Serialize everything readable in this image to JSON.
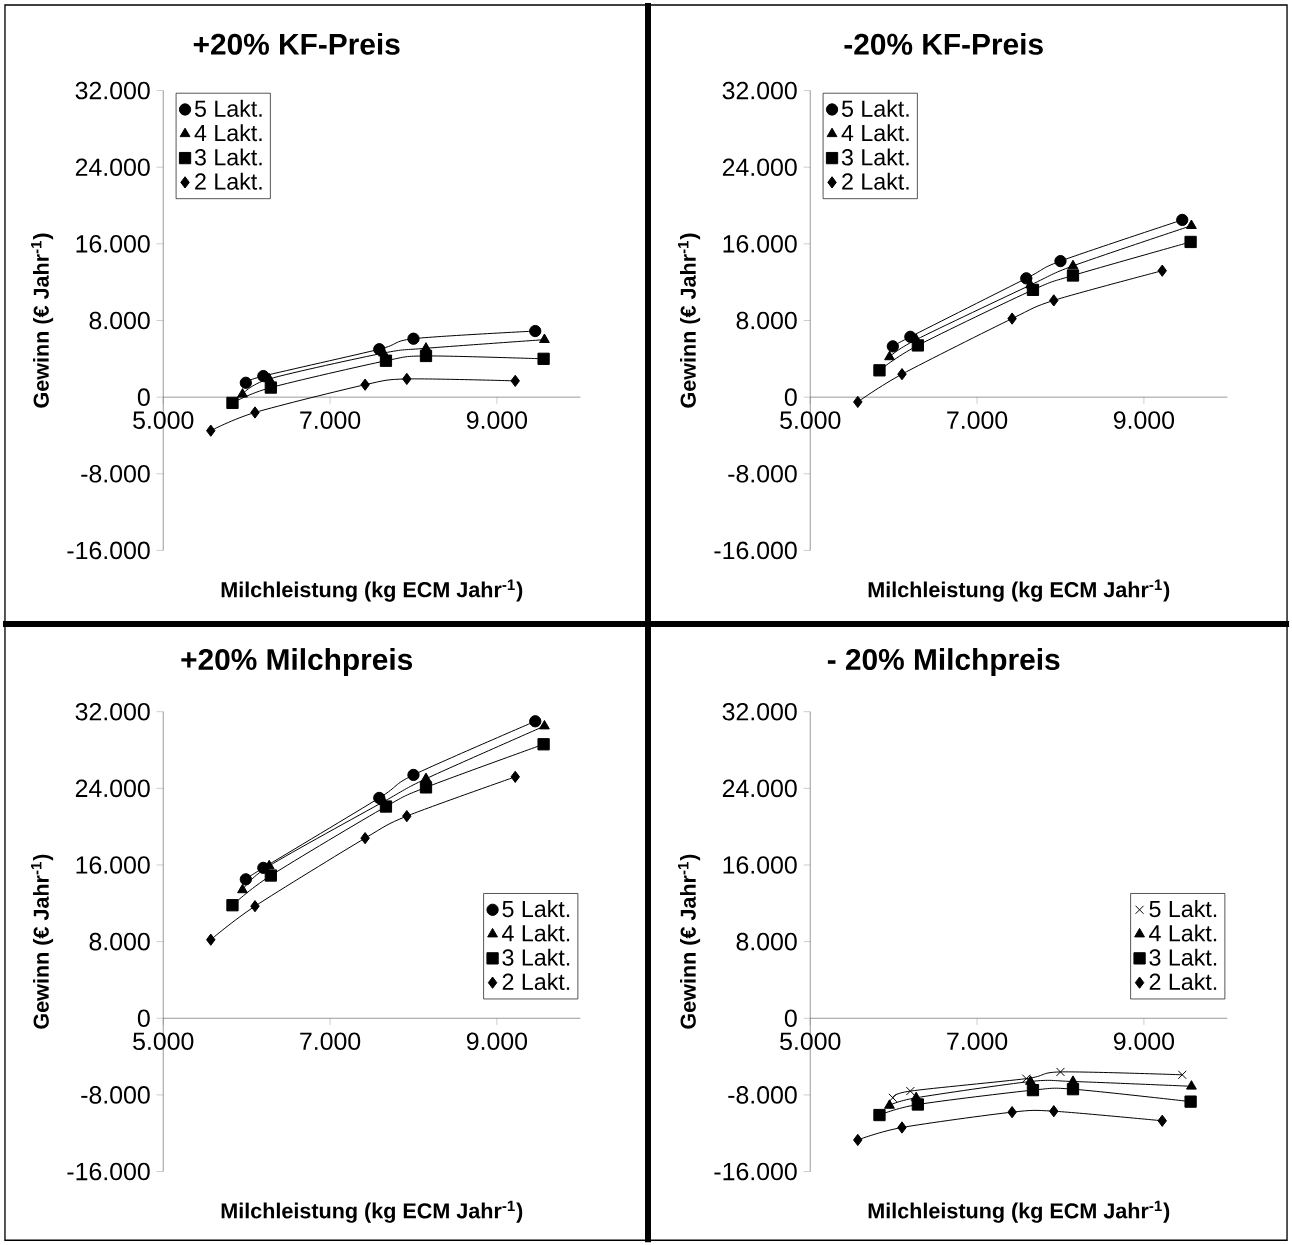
{
  "chart_data": [
    {
      "type": "line",
      "title": "+20%  KF-Preis",
      "xlabel": "Milchleistung (kg ECM Jahr$^{-1}$)",
      "ylabel": "Gewinn (€ Jahr$^{-1}$)",
      "xlim": [
        5000,
        10000
      ],
      "ylim": [
        -16000,
        32000
      ],
      "xticks": [
        {
          "value": 5000,
          "label": "5.000"
        },
        {
          "value": 7000,
          "label": "7.000"
        },
        {
          "value": 9000,
          "label": "9.000"
        }
      ],
      "yticks": [
        {
          "value": -16000,
          "label": "-16.000"
        },
        {
          "value": -8000,
          "label": "-8.000"
        },
        0,
        {
          "value": 8000,
          "label": "8.000"
        },
        {
          "value": 16000,
          "label": "16.000"
        },
        {
          "value": 24000,
          "label": "24.000"
        },
        {
          "value": 32000,
          "label": "32.000"
        }
      ],
      "legend": "top left",
      "line_style": "solid",
      "series": [
        {
          "name": "5 Lakt.",
          "color": "#000000",
          "marker": "circle",
          "x": [
            5990,
            6200,
            7590,
            8000,
            9460
          ],
          "values": [
            1500,
            2200,
            5000,
            6100,
            6900
          ]
        },
        {
          "name": "4 Lakt.",
          "color": "#000000",
          "marker": "triangle",
          "x": [
            5950,
            6270,
            7640,
            8150,
            9570
          ],
          "values": [
            300,
            1900,
            4600,
            5100,
            6000
          ]
        },
        {
          "name": "3 Lakt.",
          "color": "#000000",
          "marker": "square",
          "x": [
            5830,
            6290,
            7670,
            8150,
            9560
          ],
          "values": [
            -600,
            1000,
            3800,
            4300,
            4000
          ]
        },
        {
          "name": "2 Lakt.",
          "color": "#000000",
          "marker": "diamond",
          "x": [
            5570,
            6100,
            7420,
            7920,
            9220
          ],
          "values": [
            -3500,
            -1600,
            1300,
            1900,
            1700
          ]
        }
      ]
    },
    {
      "type": "line",
      "title": "-20%  KF-Preis",
      "xlabel": "Milchleistung (kg ECM Jahr$^{-1}$)",
      "ylabel": "Gewinn (€ Jahr$^{-1}$)",
      "xlim": [
        5000,
        10000
      ],
      "ylim": [
        -16000,
        32000
      ],
      "xticks": [
        {
          "value": 5000,
          "label": "5.000"
        },
        {
          "value": 7000,
          "label": "7.000"
        },
        {
          "value": 9000,
          "label": "9.000"
        }
      ],
      "yticks": [
        {
          "value": -16000,
          "label": "-16.000"
        },
        {
          "value": -8000,
          "label": "-8.000"
        },
        0,
        {
          "value": 8000,
          "label": "8.000"
        },
        {
          "value": 16000,
          "label": "16.000"
        },
        {
          "value": 24000,
          "label": "24.000"
        },
        {
          "value": 32000,
          "label": "32.000"
        }
      ],
      "legend": "top left",
      "line_style": "solid",
      "series": [
        {
          "name": "5 Lakt.",
          "color": "#000000",
          "marker": "circle",
          "x": [
            5990,
            6200,
            7590,
            8000,
            9460
          ],
          "values": [
            5300,
            6300,
            12400,
            14200,
            18500
          ]
        },
        {
          "name": "4 Lakt.",
          "color": "#000000",
          "marker": "triangle",
          "x": [
            5950,
            6270,
            7640,
            8150,
            9570
          ],
          "values": [
            4200,
            6000,
            11700,
            13700,
            17900
          ]
        },
        {
          "name": "3 Lakt.",
          "color": "#000000",
          "marker": "square",
          "x": [
            5830,
            6290,
            7670,
            8150,
            9560
          ],
          "values": [
            2800,
            5400,
            11200,
            12700,
            16200
          ]
        },
        {
          "name": "2 Lakt.",
          "color": "#000000",
          "marker": "diamond",
          "x": [
            5570,
            6100,
            7420,
            7920,
            9220
          ],
          "values": [
            -500,
            2400,
            8200,
            10100,
            13200
          ]
        }
      ]
    },
    {
      "type": "line",
      "title": "+20%  Milchpreis",
      "xlabel": "Milchleistung (kg ECM Jahr$^{-1}$)",
      "ylabel": "Gewinn (€ Jahr$^{-1}$)",
      "xlim": [
        5000,
        10000
      ],
      "ylim": [
        -16000,
        32000
      ],
      "xticks": [
        {
          "value": 5000,
          "label": "5.000"
        },
        {
          "value": 7000,
          "label": "7.000"
        },
        {
          "value": 9000,
          "label": "9.000"
        }
      ],
      "yticks": [
        {
          "value": -16000,
          "label": "-16.000"
        },
        {
          "value": -8000,
          "label": "-8.000"
        },
        0,
        {
          "value": 8000,
          "label": "8.000"
        },
        {
          "value": 16000,
          "label": "16.000"
        },
        {
          "value": 24000,
          "label": "24.000"
        },
        {
          "value": 32000,
          "label": "32.000"
        }
      ],
      "legend": "right",
      "line_style": "solid",
      "series": [
        {
          "name": "5 Lakt.",
          "color": "#000000",
          "marker": "circle",
          "x": [
            5990,
            6200,
            7590,
            8000,
            9460
          ],
          "values": [
            14500,
            15700,
            23000,
            25400,
            31000
          ]
        },
        {
          "name": "4 Lakt.",
          "color": "#000000",
          "marker": "triangle",
          "x": [
            5950,
            6270,
            7640,
            8150,
            9570
          ],
          "values": [
            13400,
            15900,
            22600,
            25000,
            30500
          ]
        },
        {
          "name": "3 Lakt.",
          "color": "#000000",
          "marker": "square",
          "x": [
            5830,
            6290,
            7670,
            8150,
            9560
          ],
          "values": [
            11800,
            14900,
            22100,
            24100,
            28600
          ]
        },
        {
          "name": "2 Lakt.",
          "color": "#000000",
          "marker": "diamond",
          "x": [
            5570,
            6100,
            7420,
            7920,
            9220
          ],
          "values": [
            8200,
            11700,
            18800,
            21100,
            25200
          ]
        }
      ]
    },
    {
      "type": "line",
      "title": "- 20%  Milchpreis",
      "xlabel": "Milchleistung (kg ECM Jahr$^{-1}$)",
      "ylabel": "Gewinn (€ Jahr$^{-1}$)",
      "xlim": [
        5000,
        10000
      ],
      "ylim": [
        -16000,
        32000
      ],
      "xticks": [
        {
          "value": 5000,
          "label": "5.000"
        },
        {
          "value": 7000,
          "label": "7.000"
        },
        {
          "value": 9000,
          "label": "9.000"
        }
      ],
      "yticks": [
        {
          "value": -16000,
          "label": "-16.000"
        },
        {
          "value": -8000,
          "label": "-8.000"
        },
        0,
        {
          "value": 8000,
          "label": "8.000"
        },
        {
          "value": 16000,
          "label": "16.000"
        },
        {
          "value": 24000,
          "label": "24.000"
        },
        {
          "value": 32000,
          "label": "32.000"
        }
      ],
      "legend": "right",
      "line_style": "solid",
      "series": [
        {
          "name": "5 Lakt.",
          "color": "#000000",
          "marker": "cross",
          "x": [
            5990,
            6200,
            7590,
            8000,
            9460
          ],
          "values": [
            -8300,
            -7600,
            -6300,
            -5600,
            -5900
          ]
        },
        {
          "name": "4 Lakt.",
          "color": "#000000",
          "marker": "triangle",
          "x": [
            5950,
            6270,
            7640,
            8150,
            9570
          ],
          "values": [
            -9100,
            -8300,
            -6600,
            -6600,
            -7100
          ]
        },
        {
          "name": "3 Lakt.",
          "color": "#000000",
          "marker": "square",
          "x": [
            5830,
            6290,
            7670,
            8150,
            9560
          ],
          "values": [
            -10100,
            -9000,
            -7500,
            -7400,
            -8700
          ]
        },
        {
          "name": "2 Lakt.",
          "color": "#000000",
          "marker": "diamond",
          "x": [
            5570,
            6100,
            7420,
            7920,
            9220
          ],
          "values": [
            -12700,
            -11400,
            -9800,
            -9700,
            -10700
          ]
        }
      ]
    }
  ]
}
